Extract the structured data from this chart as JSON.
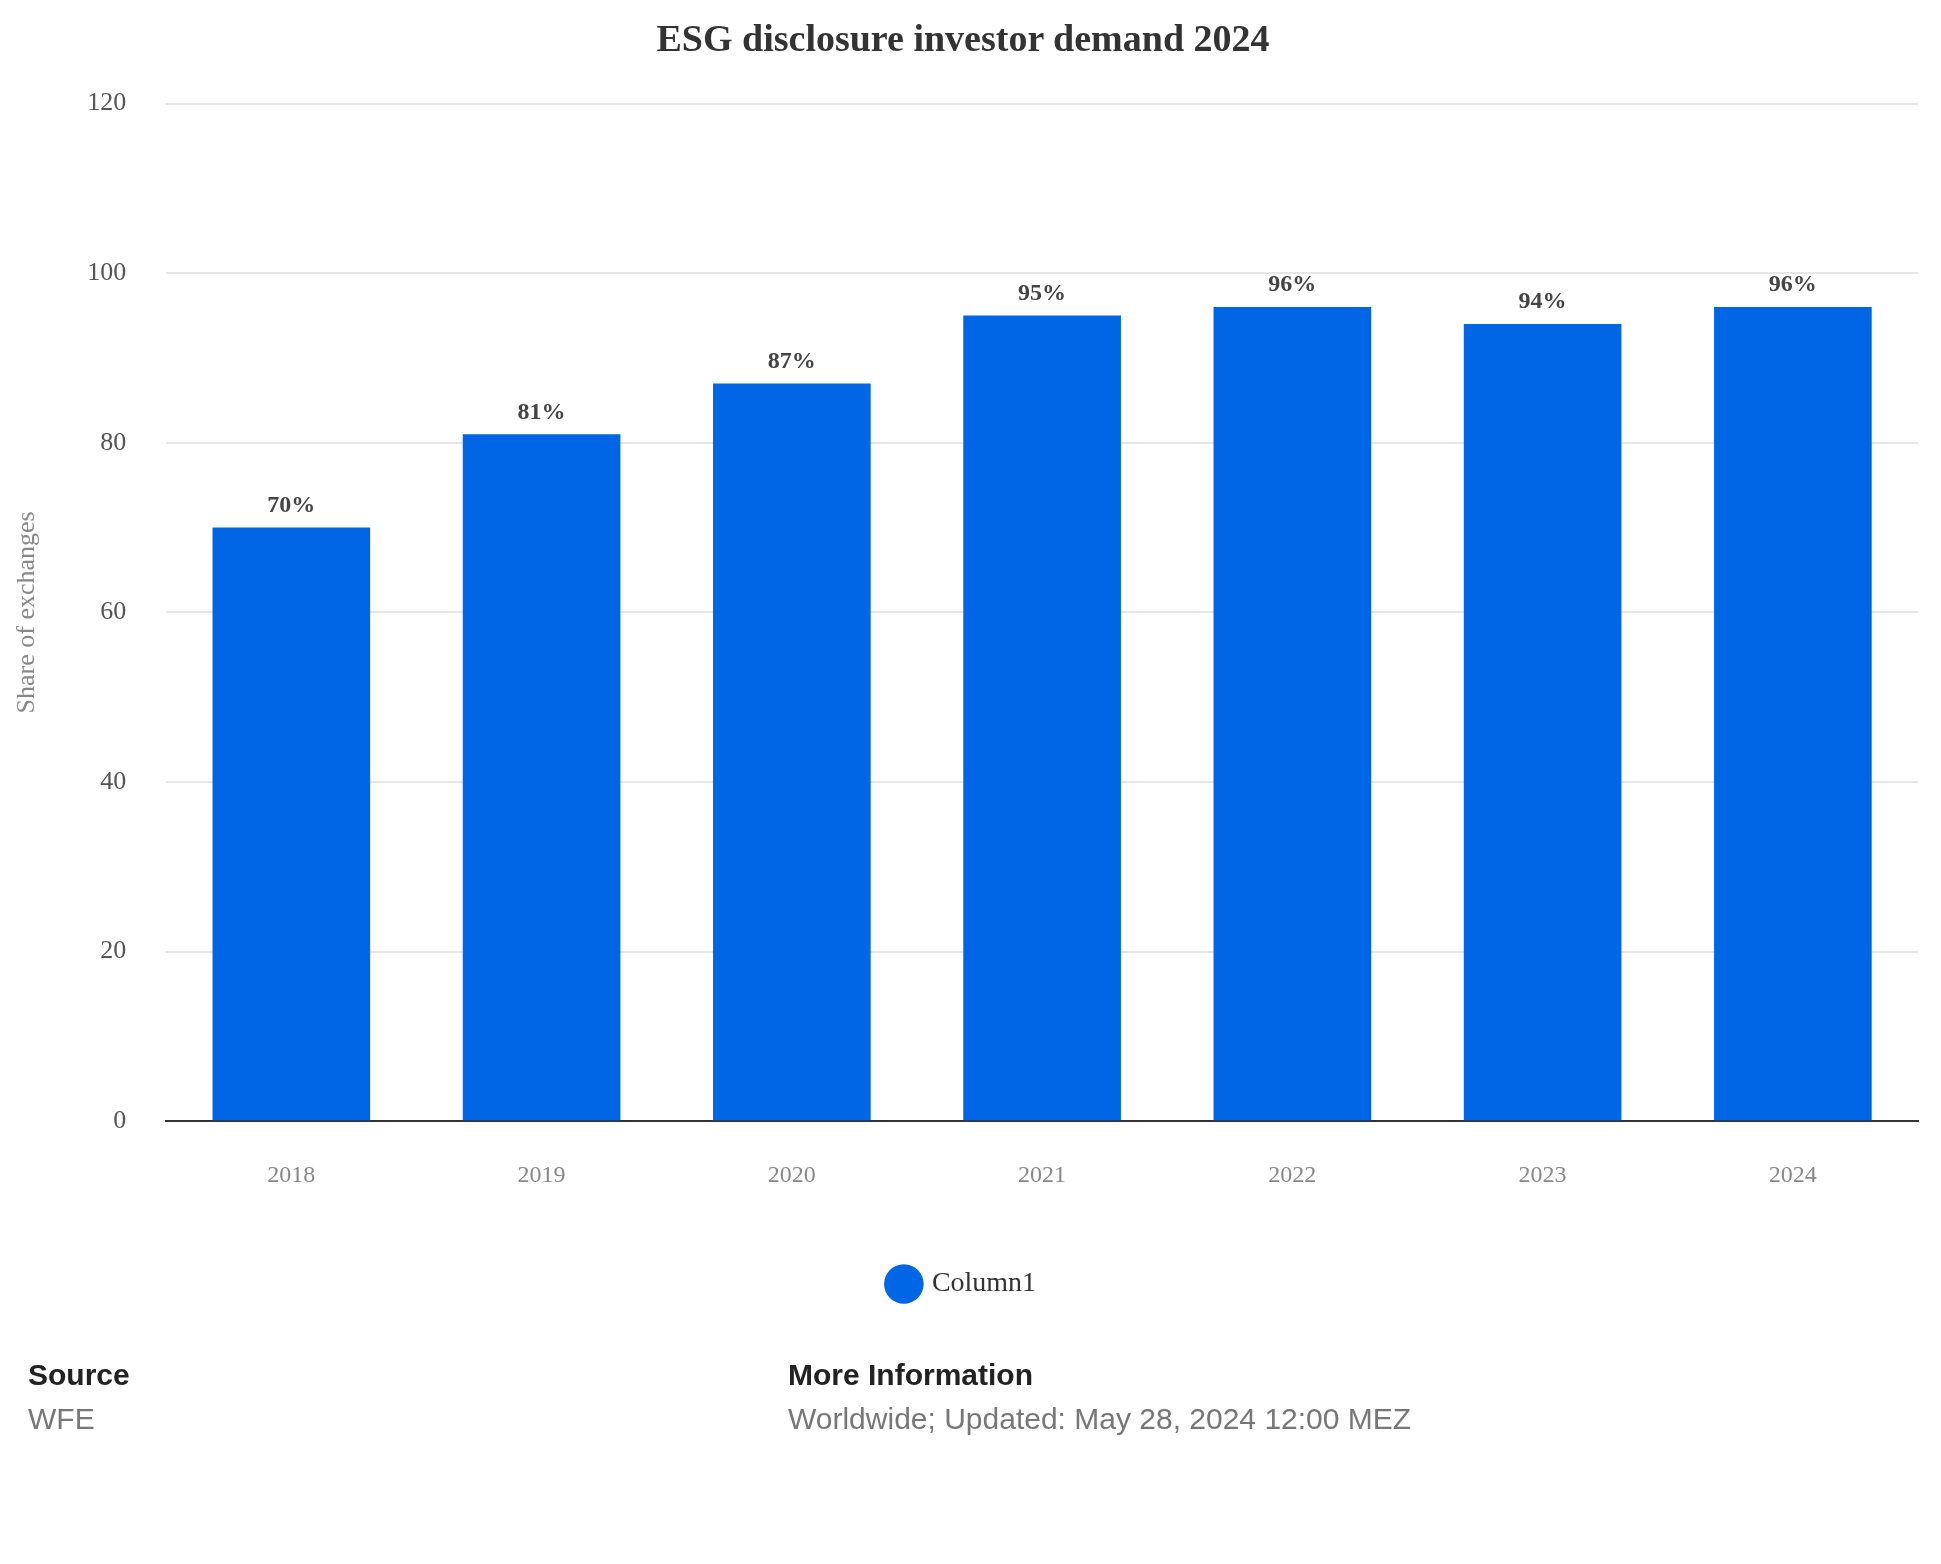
{
  "chart_data": {
    "type": "bar",
    "title": "ESG disclosure investor demand 2024",
    "ylabel": "Share of exchanges",
    "categories": [
      "2018",
      "2019",
      "2020",
      "2021",
      "2022",
      "2023",
      "2024"
    ],
    "series": [
      {
        "name": "Column1",
        "color": "#0066e6",
        "values": [
          70,
          81,
          87,
          95,
          96,
          94,
          96
        ],
        "value_labels": [
          "70%",
          "81%",
          "87%",
          "95%",
          "96%",
          "94%",
          "96%"
        ]
      }
    ],
    "ylim": [
      0,
      120
    ],
    "yticks": [
      0,
      20,
      40,
      60,
      80,
      100,
      120
    ],
    "grid": "y",
    "legend": "bottom",
    "annotations": [
      "Source",
      "WFE",
      "More Information",
      "Worldwide; Updated: May 28, 2024 12:00 MEZ"
    ]
  }
}
